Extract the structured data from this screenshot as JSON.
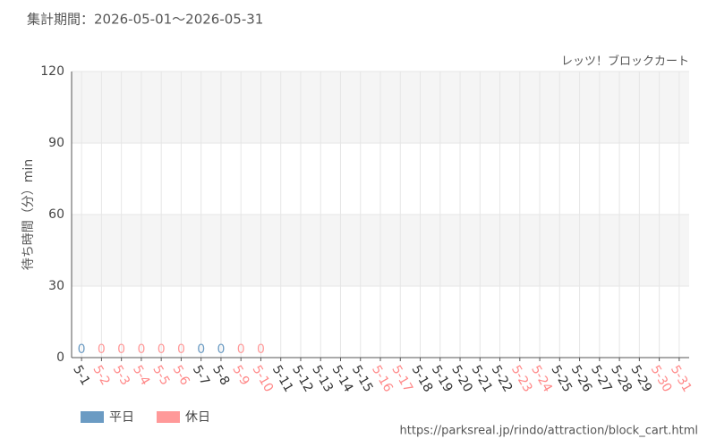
{
  "chart_data": {
    "type": "bar",
    "title": "集計期間：2026-05-01～2026-05-31",
    "subtitle": "レッツ！ブロックカート",
    "y_label": "待ち時間（分）min",
    "source": "https://parksreal.jp/rindo/attraction/block_cart.html",
    "categories": [
      "5-1",
      "5-2",
      "5-3",
      "5-4",
      "5-5",
      "5-6",
      "5-7",
      "5-8",
      "5-9",
      "5-10",
      "5-11",
      "5-12",
      "5-13",
      "5-14",
      "5-15",
      "5-16",
      "5-17",
      "5-18",
      "5-19",
      "5-20",
      "5-21",
      "5-22",
      "5-23",
      "5-24",
      "5-25",
      "5-26",
      "5-27",
      "5-28",
      "5-29",
      "5-30",
      "5-31"
    ],
    "category_colors": [
      "#333333",
      "#ff8888",
      "#ff8888",
      "#ff8888",
      "#ff8888",
      "#ff8888",
      "#333333",
      "#333333",
      "#ff8888",
      "#ff8888",
      "#333333",
      "#333333",
      "#333333",
      "#333333",
      "#333333",
      "#ff8888",
      "#ff8888",
      "#333333",
      "#333333",
      "#333333",
      "#333333",
      "#333333",
      "#ff8888",
      "#ff8888",
      "#333333",
      "#333333",
      "#333333",
      "#333333",
      "#333333",
      "#ff8888",
      "#ff8888"
    ],
    "series": [
      {
        "name": "平日",
        "color": "#6b9bc3",
        "values": [
          0,
          null,
          null,
          null,
          null,
          null,
          0,
          0,
          null,
          null,
          null,
          null,
          null,
          null,
          null,
          null,
          null,
          null,
          null,
          null,
          null,
          null,
          null,
          null,
          null,
          null,
          null,
          null,
          null,
          null,
          null
        ]
      },
      {
        "name": "休日",
        "color": "#ff9999",
        "values": [
          null,
          0,
          0,
          0,
          0,
          0,
          null,
          null,
          0,
          0,
          null,
          null,
          null,
          null,
          null,
          null,
          null,
          null,
          null,
          null,
          null,
          null,
          null,
          null,
          null,
          null,
          null,
          null,
          null,
          null,
          null
        ]
      }
    ],
    "ylim": [
      0,
      120
    ],
    "yticks": [
      0,
      30,
      60,
      90,
      120
    ],
    "grid": true
  }
}
